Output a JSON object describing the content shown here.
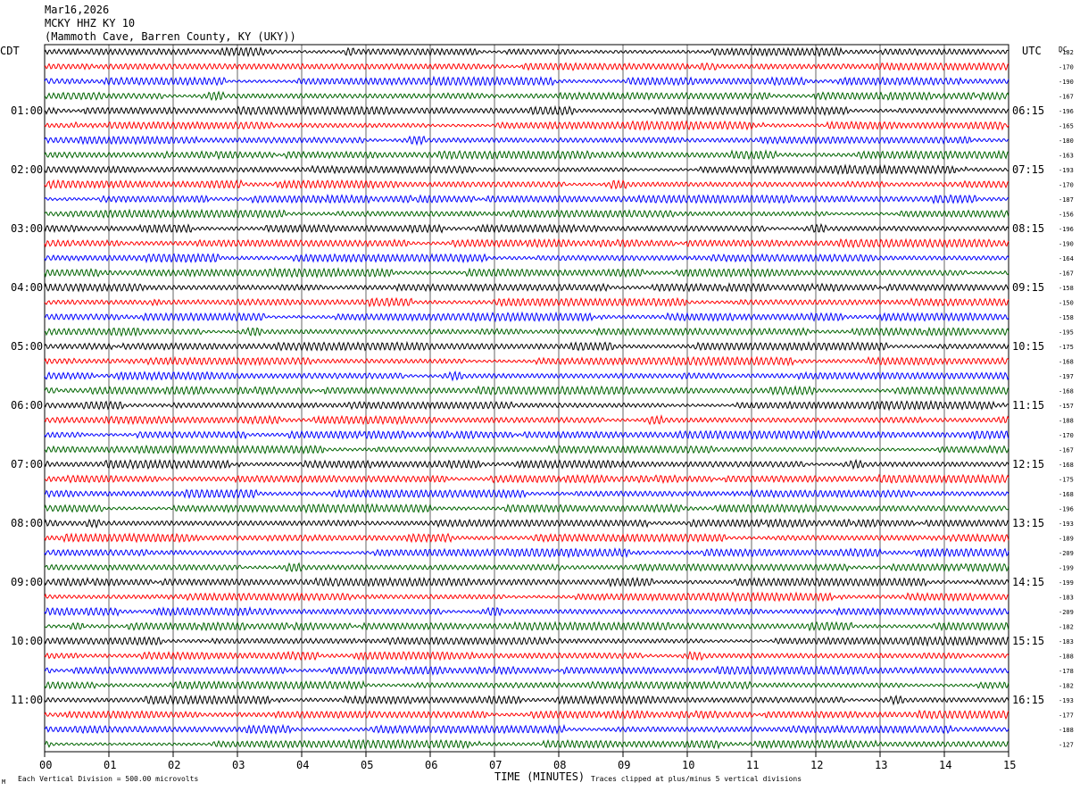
{
  "header": {
    "date": "Mar16,2026",
    "station": "MCKY HHZ KY 10",
    "location": "(Mammoth Cave, Barren County, KY (UKY))"
  },
  "left_zone_label": "CDT",
  "right_zone_label": "UTC",
  "dc_label": "DC",
  "footer": {
    "scale_note": "Each Vertical Division =  500.00 microvolts",
    "clip_note": "Traces clipped at plus/minus 5 vertical divisions",
    "mark": "M"
  },
  "chart_data": {
    "type": "line",
    "title": "MCKY HHZ KY 10",
    "xlabel": "TIME (MINUTES)",
    "ylabel": "",
    "x_ticks": [
      "00",
      "01",
      "02",
      "03",
      "04",
      "05",
      "06",
      "07",
      "08",
      "09",
      "10",
      "11",
      "12",
      "13",
      "14",
      "15"
    ],
    "xlim": [
      0,
      15
    ],
    "rows_per_hour": 4,
    "trace_colors": [
      "#000000",
      "#ff0000",
      "#0000ff",
      "#006400"
    ],
    "left_hour_labels": [
      "01:00",
      "02:00",
      "03:00",
      "04:00",
      "05:00",
      "06:00",
      "07:00",
      "08:00",
      "09:00",
      "10:00",
      "11:00"
    ],
    "right_hour_labels": [
      "06:15",
      "07:15",
      "08:15",
      "09:15",
      "10:15",
      "11:15",
      "12:15",
      "13:15",
      "14:15",
      "15:15",
      "16:15"
    ],
    "hour_label_first_row": 4,
    "row_dc_offsets": [
      "-182",
      "-170",
      "-190",
      "-167",
      "-196",
      "-165",
      "-180",
      "-163",
      "-193",
      "-170",
      "-187",
      "-156",
      "-196",
      "-190",
      "-164",
      "-167",
      "-158",
      "-150",
      "-158",
      "-195",
      "-175",
      "-168",
      "-197",
      "-168",
      "-157",
      "-188",
      "-170",
      "-167",
      "-168",
      "-175",
      "-168",
      "-196",
      "-193",
      "-189",
      "-209",
      "-199",
      "-199",
      "-183",
      "-209",
      "-182",
      "-183",
      "-188",
      "-178",
      "-182",
      "-193",
      "-177",
      "-188",
      "-127"
    ]
  }
}
